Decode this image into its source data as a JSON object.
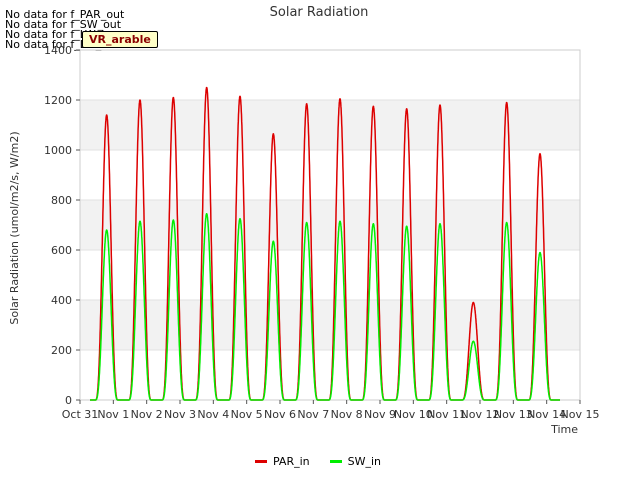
{
  "chart_data": {
    "type": "line",
    "title": "Solar Radiation",
    "xlabel": "Time",
    "ylabel": "Solar Radiation (umol/m2/s, W/m2)",
    "ylim": [
      0,
      1400
    ],
    "yticks": [
      0,
      200,
      400,
      600,
      800,
      1000,
      1200,
      1400
    ],
    "xlim": [
      0,
      15
    ],
    "x_tick_labels": [
      "Oct 31",
      "Nov 1",
      "Nov 2",
      "Nov 3",
      "Nov 4",
      "Nov 5",
      "Nov 6",
      "Nov 7",
      "Nov 8",
      "Nov 9",
      "Nov 10",
      "Nov 11",
      "Nov 12",
      "Nov 13",
      "Nov 14",
      "Nov 15"
    ],
    "no_data_messages": [
      "No data for f_PAR_out",
      "No data for f_SW_out",
      "No data for f_LW_in",
      "No data for f_LW_out"
    ],
    "badge_text": "VR_arable",
    "series": [
      {
        "name": "PAR_in",
        "color": "#dd0000",
        "daily_peak_days": [
          0.8,
          1.8,
          2.8,
          3.8,
          4.8,
          5.8,
          6.8,
          7.8,
          8.8,
          9.8,
          10.8,
          11.8,
          12.8,
          13.8
        ],
        "daily_peaks": [
          1140,
          1200,
          1210,
          1250,
          1215,
          1065,
          1185,
          1205,
          1175,
          1165,
          1180,
          390,
          1190,
          985
        ]
      },
      {
        "name": "SW_in",
        "color": "#00ee00",
        "daily_peak_days": [
          0.8,
          1.8,
          2.8,
          3.8,
          4.8,
          5.8,
          6.8,
          7.8,
          8.8,
          9.8,
          10.8,
          11.8,
          12.8,
          13.8
        ],
        "daily_peaks": [
          680,
          715,
          720,
          745,
          725,
          635,
          710,
          715,
          705,
          695,
          705,
          235,
          710,
          590
        ]
      }
    ]
  }
}
